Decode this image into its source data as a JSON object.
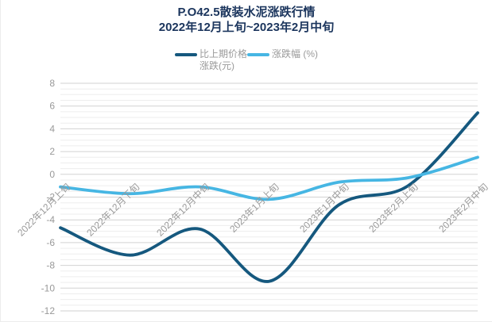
{
  "title": {
    "line1": "P.O42.5散装水泥涨跌行情",
    "line2": "2022年12月上旬~2023年2月中旬"
  },
  "legend": {
    "items": [
      {
        "label_line1": "比上期价格",
        "label_line2": "涨跌(元)",
        "color": "#15587E"
      },
      {
        "label": "涨跌幅 (%)",
        "color": "#46B6E3"
      }
    ]
  },
  "chart_data": {
    "type": "line",
    "title": "P.O42.5散装水泥涨跌行情 2022年12月上旬~2023年2月中旬",
    "categories": [
      "2022年12月上旬",
      "2022年12月下旬",
      "2022年12月中旬",
      "2023年1月上旬",
      "2023年1月中旬",
      "2023年2月上旬",
      "2023年2月中旬"
    ],
    "series": [
      {
        "name": "比上期价格涨跌(元)",
        "color": "#15587E",
        "values": [
          -4.7,
          -7.1,
          -4.8,
          -9.4,
          -2.7,
          -1.0,
          5.4
        ]
      },
      {
        "name": "涨跌幅 (%)",
        "color": "#46B6E3",
        "values": [
          -1.1,
          -1.7,
          -1.1,
          -2.2,
          -0.7,
          -0.3,
          1.5
        ]
      }
    ],
    "xlabel": "",
    "ylabel": "",
    "ylim": [
      -12,
      8
    ],
    "y_tick_step": 2,
    "y_minor_step": 0.5,
    "y_tick_labels": [
      "8",
      "6",
      "4",
      "2",
      "0",
      "-2",
      "-4",
      "-6",
      "-8",
      "-10",
      "-12"
    ],
    "grid": "on",
    "smooth": true,
    "legend_position": "top",
    "axis_text_color": "#999999",
    "grid_major_color": "#d2d2d2",
    "grid_minor_color": "#ededed"
  }
}
